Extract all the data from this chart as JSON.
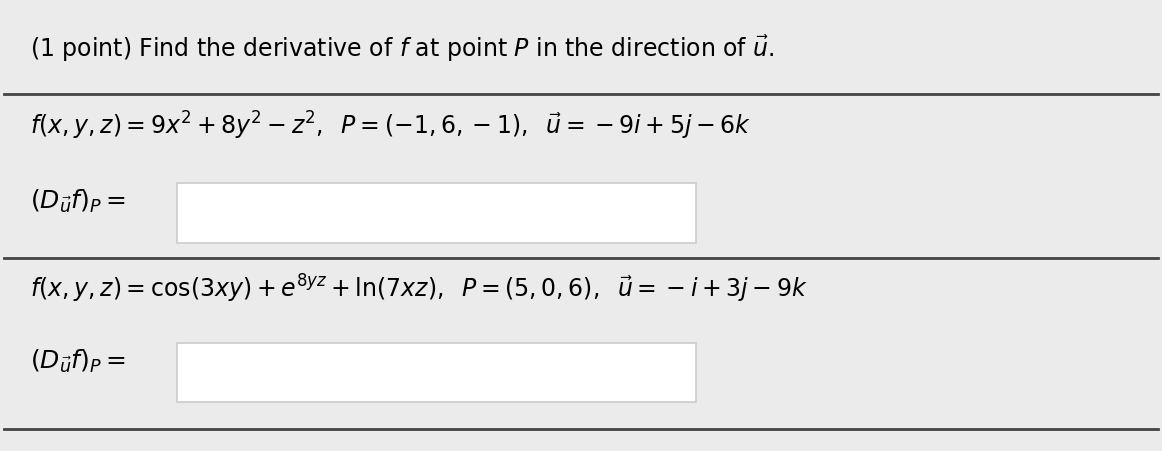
{
  "background_color": "#ebebeb",
  "content_background": "#ebebeb",
  "title_plain": "(1 point) Find the derivative of ",
  "title_f": "f",
  "title_mid": " at point ",
  "title_P": "P",
  "title_end": " in the direction of ",
  "title_u": "u",
  "problem1_eq": "$f(x, y, z) = 9x^2 + 8y^2 - z^2, \\;\\; P = (-1, 6, -1), \\;\\; \\vec{u} = -9i + 5j - 6k$",
  "problem1_answer_label": "$(D_{\\vec{u}}f)_P =$",
  "problem2_eq": "$f(x, y, z) = \\cos(3xy) + e^{8yz} + \\ln(7xz), \\;\\; P = (5, 0, 6), \\;\\; \\vec{u} = -i + 3j - 9k$",
  "problem2_answer_label": "$(D_{\\vec{u}}f)_P =$",
  "box_facecolor": "#ffffff",
  "box_edgecolor": "#cccccc",
  "line_color": "#444444",
  "title_fontsize": 17,
  "eq_fontsize": 17,
  "label_fontsize": 18
}
